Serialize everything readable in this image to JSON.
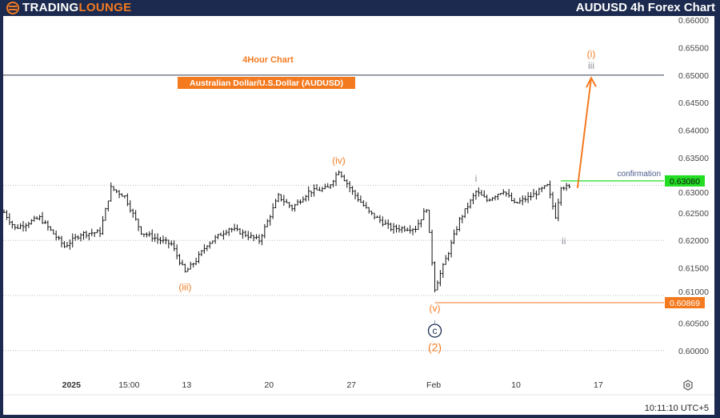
{
  "header": {
    "brand_part1": "TRADING",
    "brand_part2": "LOUNGE",
    "title": "AUDUSD 4h Forex Chart"
  },
  "chart_data": {
    "type": "candlestick",
    "subtitle": "4Hour Chart",
    "instrument": "Australian Dollar/U.S.Dollar (AUDUSD)",
    "ylim": [
      0.6,
      0.66
    ],
    "y_ticks": [
      "0.66000",
      "0.65500",
      "0.65000",
      "0.64500",
      "0.64000",
      "0.63500",
      "0.63000",
      "0.62500",
      "0.62000",
      "0.61500",
      "0.61000",
      "0.60500",
      "0.60000"
    ],
    "x_ticks": [
      {
        "label": "2025",
        "bar": 24
      },
      {
        "label": "15:00",
        "bar": 45
      },
      {
        "label": "13",
        "bar": 66
      },
      {
        "label": "20",
        "bar": 96
      },
      {
        "label": "27",
        "bar": 126
      },
      {
        "label": "Feb",
        "bar": 156
      },
      {
        "label": "10",
        "bar": 186
      },
      {
        "label": "17",
        "bar": 216
      }
    ],
    "price_path": [
      [
        0,
        0.6251
      ],
      [
        4,
        0.6222
      ],
      [
        13,
        0.6241
      ],
      [
        22,
        0.6189
      ],
      [
        28,
        0.6212
      ],
      [
        35,
        0.6215
      ],
      [
        39,
        0.6295
      ],
      [
        44,
        0.628
      ],
      [
        50,
        0.6215
      ],
      [
        57,
        0.62
      ],
      [
        61,
        0.6193
      ],
      [
        66,
        0.6142
      ],
      [
        70,
        0.6164
      ],
      [
        74,
        0.6193
      ],
      [
        82,
        0.6222
      ],
      [
        86,
        0.6215
      ],
      [
        93,
        0.62
      ],
      [
        100,
        0.628
      ],
      [
        105,
        0.6259
      ],
      [
        111,
        0.6288
      ],
      [
        118,
        0.6295
      ],
      [
        122,
        0.6327
      ],
      [
        127,
        0.6288
      ],
      [
        133,
        0.6251
      ],
      [
        141,
        0.6222
      ],
      [
        150,
        0.6222
      ],
      [
        154,
        0.6259
      ],
      [
        157,
        0.6113
      ],
      [
        162,
        0.6179
      ],
      [
        166,
        0.6237
      ],
      [
        172,
        0.6288
      ],
      [
        176,
        0.6273
      ],
      [
        182,
        0.6291
      ],
      [
        186,
        0.6266
      ],
      [
        192,
        0.628
      ],
      [
        198,
        0.6299
      ],
      [
        201,
        0.6244
      ],
      [
        203,
        0.6299
      ],
      [
        206,
        0.6295
      ]
    ],
    "levels": [
      {
        "name": "wave-iii-target",
        "price": 0.65,
        "color": "#7a7f8c"
      },
      {
        "name": "confirmation",
        "price": 0.6308,
        "label": "0.63080",
        "text": "confirmation",
        "color": "#22dd22"
      },
      {
        "name": "invalidation",
        "price": 0.60869,
        "label": "0.60869",
        "color": "#f47a20"
      }
    ],
    "wave_labels": [
      {
        "text": "(iv)",
        "bar": 122,
        "price": 0.6345,
        "color": "#f47a20"
      },
      {
        "text": "(iii)",
        "bar": 66,
        "price": 0.6115,
        "color": "#f47a20"
      },
      {
        "text": "(v)",
        "bar": 157,
        "price": 0.6077,
        "color": "#f47a20"
      },
      {
        "text": "c",
        "bar": 157,
        "price": 0.6036,
        "color": "#1b2a4e",
        "circle": true
      },
      {
        "text": "(2)",
        "bar": 157,
        "price": 0.6005,
        "color": "#f47a20"
      },
      {
        "text": "i",
        "bar": 172,
        "price": 0.6312,
        "color": "#8a8f98"
      },
      {
        "text": "ii",
        "bar": 204,
        "price": 0.6199,
        "color": "#8a8f98"
      },
      {
        "text": "(i)",
        "bar": 214,
        "price": 0.6538,
        "color": "#f47a20"
      },
      {
        "text": "iii",
        "bar": 214,
        "price": 0.6517,
        "color": "#8a8f98"
      }
    ],
    "projection": {
      "from": [
        209,
        0.6295
      ],
      "to": [
        214,
        0.6495
      ],
      "color": "#f47a20"
    },
    "grid": "dotted at 0.01"
  },
  "footer": {
    "time": "10:11:10 UTC+5"
  }
}
